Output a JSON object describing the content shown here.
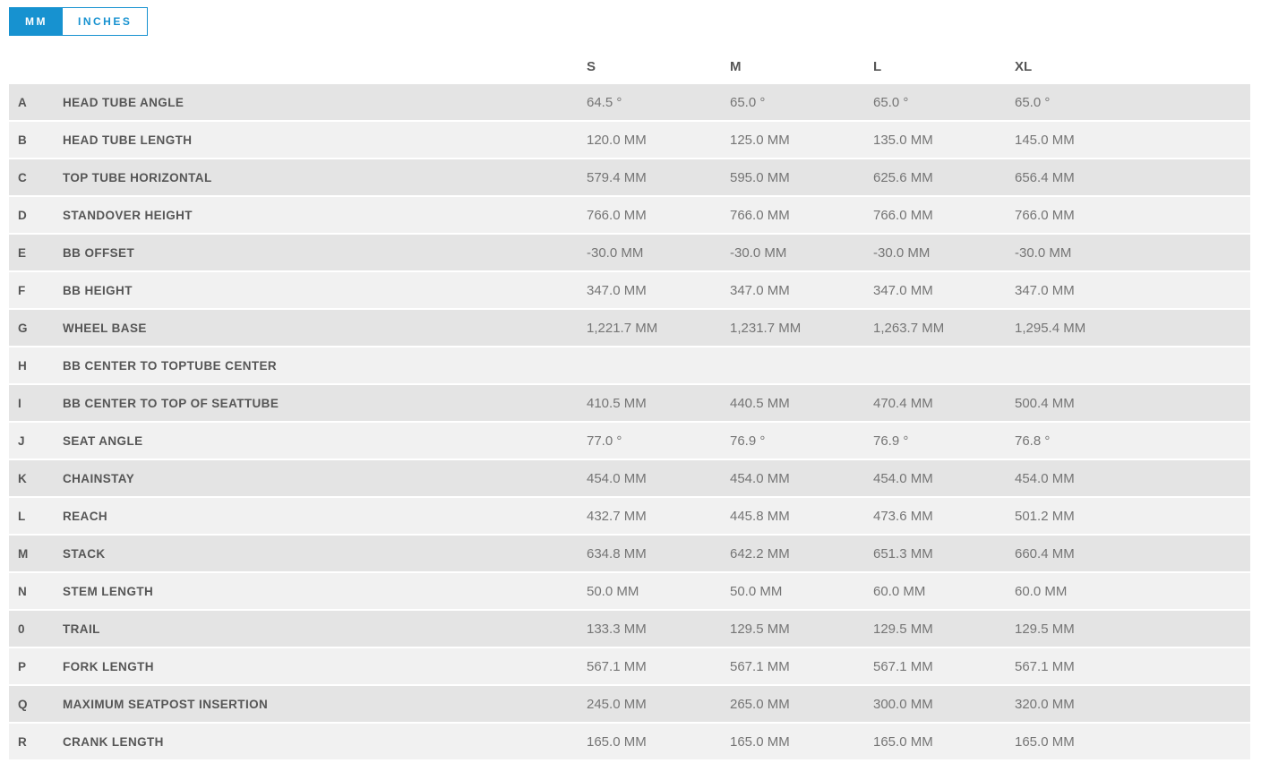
{
  "unit_toggle": {
    "mm_label": "MM",
    "inches_label": "INCHES",
    "active_unit": "MM"
  },
  "geometry_table": {
    "size_columns": [
      "S",
      "M",
      "L",
      "XL"
    ],
    "rows": [
      {
        "letter": "A",
        "label": "HEAD TUBE ANGLE",
        "values": [
          "64.5 °",
          "65.0 °",
          "65.0 °",
          "65.0 °"
        ]
      },
      {
        "letter": "B",
        "label": "HEAD TUBE LENGTH",
        "values": [
          "120.0 MM",
          "125.0 MM",
          "135.0 MM",
          "145.0 MM"
        ]
      },
      {
        "letter": "C",
        "label": "TOP TUBE HORIZONTAL",
        "values": [
          "579.4 MM",
          "595.0 MM",
          "625.6 MM",
          "656.4 MM"
        ]
      },
      {
        "letter": "D",
        "label": "STANDOVER HEIGHT",
        "values": [
          "766.0 MM",
          "766.0 MM",
          "766.0 MM",
          "766.0 MM"
        ]
      },
      {
        "letter": "E",
        "label": "BB OFFSET",
        "values": [
          "-30.0 MM",
          "-30.0 MM",
          "-30.0 MM",
          "-30.0 MM"
        ]
      },
      {
        "letter": "F",
        "label": "BB HEIGHT",
        "values": [
          "347.0 MM",
          "347.0 MM",
          "347.0 MM",
          "347.0 MM"
        ]
      },
      {
        "letter": "G",
        "label": "WHEEL BASE",
        "values": [
          "1,221.7 MM",
          "1,231.7 MM",
          "1,263.7 MM",
          "1,295.4 MM"
        ]
      },
      {
        "letter": "H",
        "label": "BB CENTER TO TOPTUBE CENTER",
        "values": [
          "",
          "",
          "",
          ""
        ]
      },
      {
        "letter": "I",
        "label": "BB CENTER TO TOP OF SEATTUBE",
        "values": [
          "410.5 MM",
          "440.5 MM",
          "470.4 MM",
          "500.4 MM"
        ]
      },
      {
        "letter": "J",
        "label": "SEAT ANGLE",
        "values": [
          "77.0 °",
          "76.9 °",
          "76.9 °",
          "76.8 °"
        ]
      },
      {
        "letter": "K",
        "label": "CHAINSTAY",
        "values": [
          "454.0 MM",
          "454.0 MM",
          "454.0 MM",
          "454.0 MM"
        ]
      },
      {
        "letter": "L",
        "label": "REACH",
        "values": [
          "432.7 MM",
          "445.8 MM",
          "473.6 MM",
          "501.2 MM"
        ]
      },
      {
        "letter": "M",
        "label": "STACK",
        "values": [
          "634.8 MM",
          "642.2 MM",
          "651.3 MM",
          "660.4 MM"
        ]
      },
      {
        "letter": "N",
        "label": "STEM LENGTH",
        "values": [
          "50.0 MM",
          "50.0 MM",
          "60.0 MM",
          "60.0 MM"
        ]
      },
      {
        "letter": "0",
        "label": "TRAIL",
        "values": [
          "133.3 MM",
          "129.5 MM",
          "129.5 MM",
          "129.5 MM"
        ]
      },
      {
        "letter": "P",
        "label": "FORK LENGTH",
        "values": [
          "567.1 MM",
          "567.1 MM",
          "567.1 MM",
          "567.1 MM"
        ]
      },
      {
        "letter": "Q",
        "label": "MAXIMUM SEATPOST INSERTION",
        "values": [
          "245.0 MM",
          "265.0 MM",
          "300.0 MM",
          "320.0 MM"
        ]
      },
      {
        "letter": "R",
        "label": "CRANK LENGTH",
        "values": [
          "165.0 MM",
          "165.0 MM",
          "165.0 MM",
          "165.0 MM"
        ]
      }
    ]
  },
  "colors": {
    "accent_blue": "#1792d0",
    "row_shaded": "#e4e4e4",
    "row_light": "#f1f1f1",
    "label_text": "#565656",
    "value_text": "#757575"
  }
}
